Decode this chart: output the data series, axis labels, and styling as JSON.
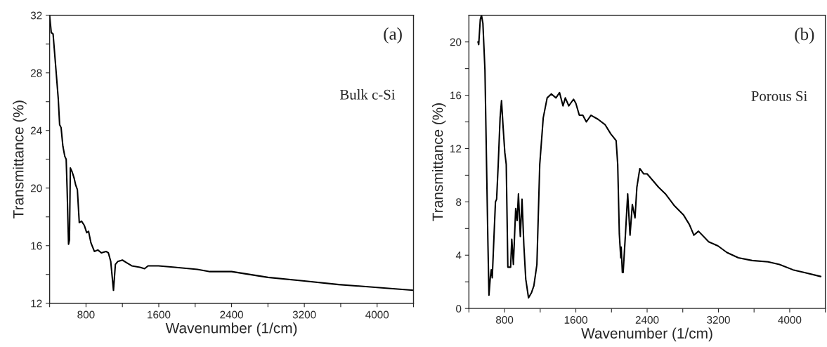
{
  "chart_data": [
    {
      "type": "line",
      "xlabel": "Wavenumber (1/cm)",
      "ylabel": "Transmittance (%)",
      "annotations": [
        "(a)",
        "Bulk c-Si"
      ],
      "xlim": [
        400,
        4400
      ],
      "ylim": [
        12,
        32
      ],
      "xticks": [
        {
          "value": 400,
          "label": null
        },
        800,
        {
          "value": 1200,
          "label": null
        },
        1600,
        {
          "value": 2000,
          "label": null
        },
        2400,
        {
          "value": 2800,
          "label": null
        },
        3200,
        {
          "value": 3600,
          "label": null
        },
        4000,
        {
          "value": 4400,
          "label": null
        }
      ],
      "yticks": [
        12,
        {
          "value": 14,
          "label": null
        },
        16,
        {
          "value": 18,
          "label": null
        },
        20,
        {
          "value": 22,
          "label": null
        },
        24,
        {
          "value": 26,
          "label": null
        },
        28,
        {
          "value": 30,
          "label": null
        },
        32
      ],
      "grid": false,
      "marker": "none",
      "line_style": "solid",
      "series": [
        {
          "color": "#000000",
          "x": [
            400,
            418,
            438,
            456,
            495,
            510,
            526,
            546,
            567,
            582,
            592,
            608,
            618,
            628,
            649,
            669,
            687,
            705,
            726,
            751,
            782,
            808,
            828,
            854,
            892,
            930,
            969,
            1020,
            1046,
            1072,
            1102,
            1123,
            1149,
            1200,
            1251,
            1303,
            1392,
            1444,
            1482,
            1597,
            1777,
            2024,
            2162,
            2400,
            2800,
            3200,
            3578,
            4000,
            4400
          ],
          "values": [
            32,
            30.8,
            30.7,
            29.3,
            26.2,
            24.4,
            24.2,
            22.9,
            22.2,
            22.0,
            20.0,
            16.1,
            16.4,
            21.4,
            21.1,
            20.7,
            20.2,
            19.9,
            17.6,
            17.7,
            17.4,
            16.9,
            17.0,
            16.2,
            15.6,
            15.7,
            15.5,
            15.6,
            15.5,
            14.9,
            12.9,
            14.7,
            14.9,
            15.0,
            14.8,
            14.6,
            14.5,
            14.4,
            14.6,
            14.6,
            14.5,
            14.35,
            14.2,
            14.2,
            13.8,
            13.55,
            13.3,
            13.1,
            12.9
          ]
        }
      ]
    },
    {
      "type": "line",
      "xlabel": "Wavenumber (1/cm)",
      "ylabel": "Transmittance (%)",
      "annotations": [
        "(b)",
        "Porous Si"
      ],
      "xlim": [
        400,
        4400
      ],
      "ylim": [
        0,
        22
      ],
      "xticks": [
        {
          "value": 400,
          "label": null
        },
        800,
        {
          "value": 1200,
          "label": null
        },
        1600,
        {
          "value": 2000,
          "label": null
        },
        2400,
        {
          "value": 2800,
          "label": null
        },
        3200,
        {
          "value": 3600,
          "label": null
        },
        4000,
        {
          "value": 4400,
          "label": null
        }
      ],
      "yticks": [
        0,
        {
          "value": 2,
          "label": null
        },
        4,
        {
          "value": 6,
          "label": null
        },
        8,
        {
          "value": 10,
          "label": null
        },
        12,
        {
          "value": 14,
          "label": null
        },
        16,
        {
          "value": 18,
          "label": null
        },
        20
      ],
      "grid": false,
      "marker": "none",
      "line_style": "solid",
      "series": [
        {
          "color": "#000000",
          "x": [
            502,
            510,
            528,
            541,
            557,
            580,
            598,
            614,
            625,
            641,
            651,
            662,
            677,
            698,
            711,
            729,
            750,
            766,
            782,
            803,
            819,
            837,
            868,
            881,
            899,
            925,
            941,
            956,
            977,
            996,
            1017,
            1038,
            1069,
            1103,
            1129,
            1163,
            1195,
            1234,
            1278,
            1325,
            1377,
            1417,
            1456,
            1482,
            1521,
            1574,
            1600,
            1639,
            1678,
            1718,
            1770,
            1848,
            1927,
            1992,
            2052,
            2070,
            2088,
            2104,
            2109,
            2122,
            2131,
            2157,
            2182,
            2208,
            2234,
            2264,
            2285,
            2318,
            2362,
            2400,
            2464,
            2528,
            2605,
            2707,
            2810,
            2874,
            2925,
            2976,
            3091,
            3194,
            3296,
            3424,
            3578,
            3757,
            3885,
            4038,
            4166,
            4348
          ],
          "values": [
            20.0,
            19.8,
            21.7,
            22.0,
            21.4,
            17.9,
            10.8,
            4.7,
            1.0,
            2.4,
            2.9,
            2.3,
            4.7,
            8.0,
            8.2,
            10.8,
            14.3,
            15.6,
            13.8,
            11.7,
            10.8,
            3.1,
            3.1,
            5.2,
            3.3,
            7.5,
            6.6,
            8.6,
            5.4,
            8.2,
            4.7,
            2.2,
            0.8,
            1.2,
            1.7,
            3.3,
            10.8,
            14.3,
            15.8,
            16.1,
            15.8,
            16.2,
            15.2,
            15.8,
            15.2,
            15.7,
            15.4,
            14.5,
            14.5,
            14.0,
            14.5,
            14.2,
            13.8,
            13.1,
            12.6,
            10.8,
            5.6,
            3.8,
            4.6,
            2.7,
            2.7,
            5.6,
            8.6,
            5.5,
            7.8,
            6.8,
            9.1,
            10.5,
            10.1,
            10.1,
            9.6,
            9.1,
            8.6,
            7.7,
            7.0,
            6.3,
            5.5,
            5.8,
            5.0,
            4.7,
            4.2,
            3.8,
            3.6,
            3.5,
            3.3,
            2.9,
            2.7,
            2.4
          ]
        }
      ]
    }
  ]
}
